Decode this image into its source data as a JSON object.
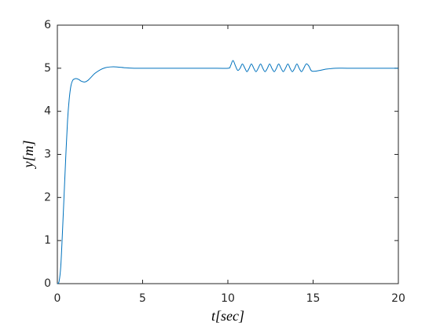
{
  "chart_data": {
    "type": "line",
    "xlabel": "t[sec]",
    "ylabel": "y[m]",
    "xlim": [
      0,
      20
    ],
    "ylim": [
      0,
      6
    ],
    "xticks": [
      0,
      5,
      10,
      15,
      20
    ],
    "yticks": [
      0,
      1,
      2,
      3,
      4,
      5,
      6
    ],
    "grid": false,
    "series": [
      {
        "color": "#0072bd",
        "x": [
          0,
          0.1,
          0.2,
          0.3,
          0.4,
          0.5,
          0.6,
          0.7,
          0.8,
          0.9,
          1.0,
          1.1,
          1.25,
          1.4,
          1.6,
          1.8,
          2.0,
          2.2,
          2.5,
          2.8,
          3.1,
          3.5,
          4.0,
          4.5,
          5,
          6,
          7,
          8,
          9,
          10,
          10.15,
          10.3,
          10.45,
          10.58,
          10.72,
          10.85,
          11.0,
          11.12,
          11.25,
          11.38,
          11.52,
          11.65,
          11.78,
          11.92,
          12.05,
          12.18,
          12.32,
          12.45,
          12.58,
          12.72,
          12.85,
          12.98,
          13.12,
          13.25,
          13.38,
          13.52,
          13.65,
          13.78,
          13.92,
          14.05,
          14.18,
          14.32,
          14.45,
          14.6,
          14.75,
          14.9,
          15.1,
          15.4,
          15.8,
          16.3,
          17,
          18,
          19,
          20
        ],
        "values": [
          0,
          0.05,
          0.4,
          1.2,
          2.1,
          3.0,
          3.8,
          4.3,
          4.6,
          4.72,
          4.75,
          4.76,
          4.74,
          4.7,
          4.68,
          4.72,
          4.8,
          4.88,
          4.96,
          5.01,
          5.03,
          5.03,
          5.01,
          5.0,
          5.0,
          5.0,
          5.0,
          5.0,
          5.0,
          5.0,
          5.05,
          5.18,
          5.05,
          4.95,
          5.0,
          5.1,
          5.0,
          4.92,
          5.0,
          5.1,
          5.0,
          4.92,
          5.0,
          5.1,
          5.0,
          4.92,
          5.0,
          5.1,
          5.0,
          4.92,
          5.0,
          5.1,
          5.0,
          4.92,
          5.0,
          5.1,
          5.0,
          4.92,
          5.0,
          5.1,
          5.0,
          4.92,
          5.0,
          5.1,
          5.05,
          4.94,
          4.93,
          4.95,
          4.98,
          5.0,
          5.0,
          5.0,
          5.0,
          5.0
        ]
      }
    ]
  }
}
